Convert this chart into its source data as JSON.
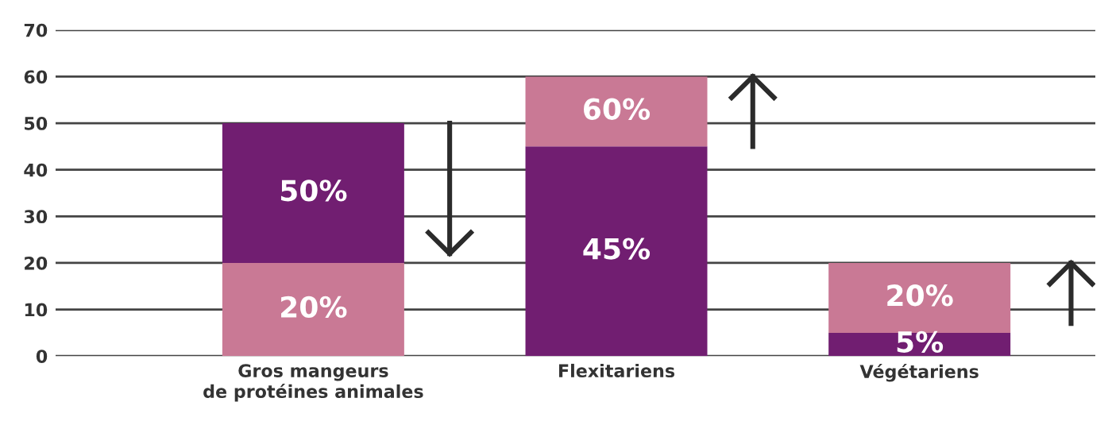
{
  "chart_data": {
    "type": "bar",
    "stacked": true,
    "categories": [
      "Gros mangeurs\nde protéines animales",
      "Flexitariens",
      "Végétariens"
    ],
    "series": [
      {
        "colors": [
          "#c97995",
          "#711e71",
          "#711e71"
        ],
        "values": [
          20,
          45,
          5
        ],
        "value_labels": [
          "20%",
          "45%",
          "5%"
        ]
      },
      {
        "colors": [
          "#711e71",
          "#c97995",
          "#c97995"
        ],
        "values": [
          30,
          15,
          15
        ]
      }
    ],
    "totals": [
      "50%",
      "60%",
      "20%"
    ],
    "ylim": [
      0,
      70
    ],
    "yticks": [
      0,
      10,
      20,
      30,
      40,
      50,
      60,
      70
    ],
    "grid": "y"
  }
}
